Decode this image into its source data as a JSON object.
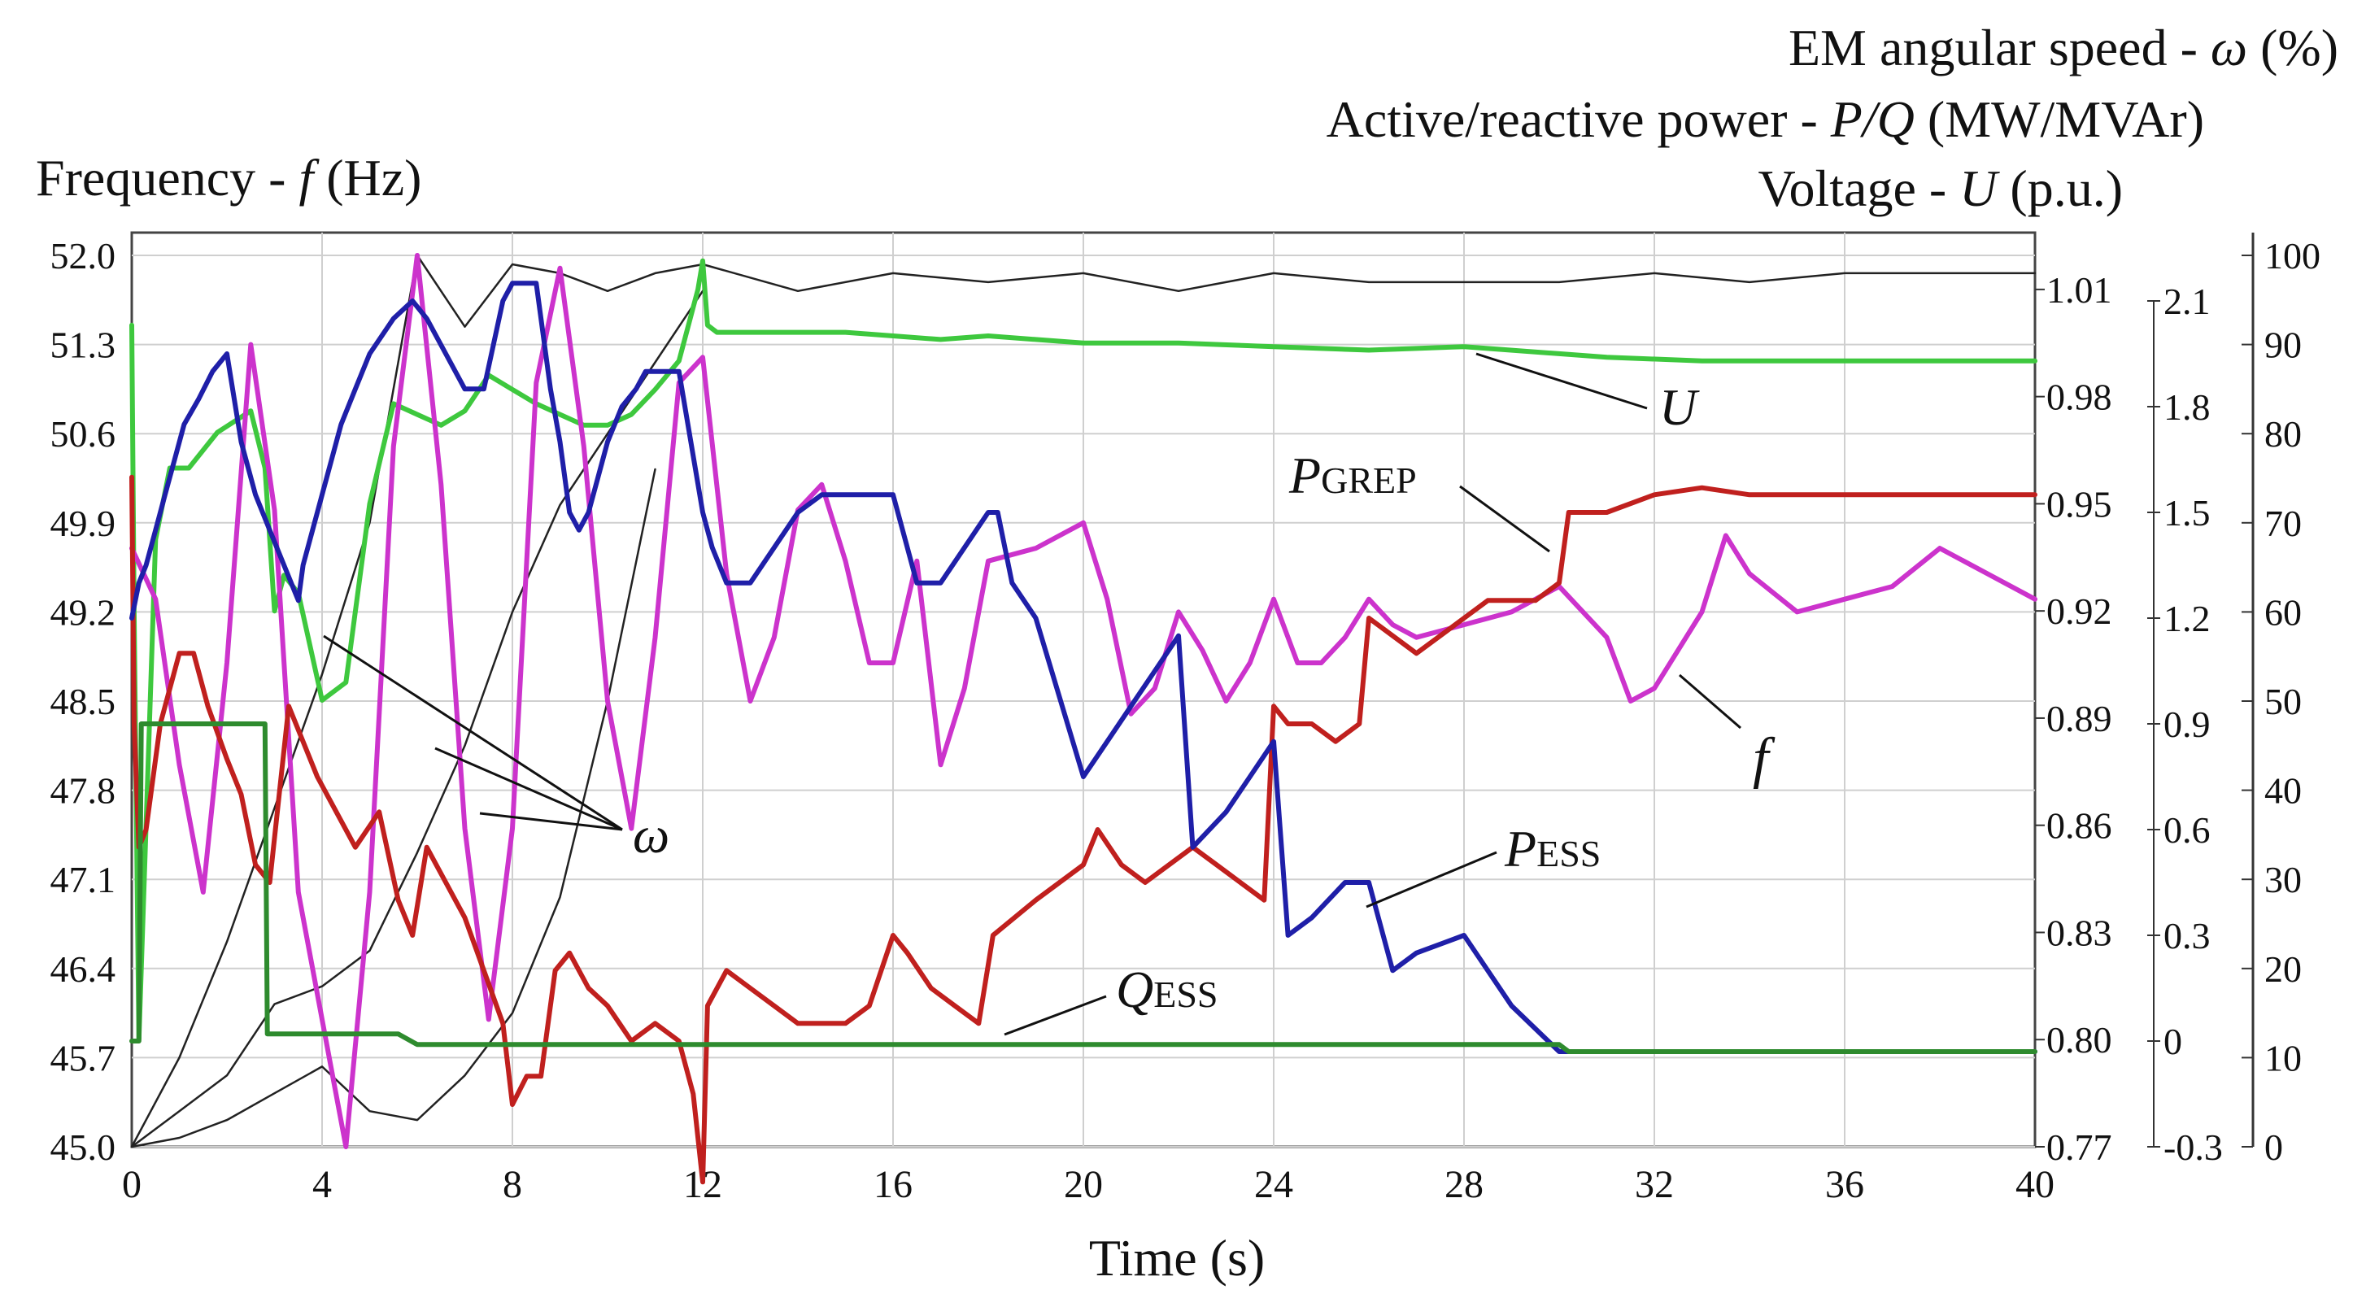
{
  "chart_data": {
    "type": "line",
    "title_lines": [
      {
        "key": "omega",
        "label": "EM angular speed - ",
        "symbol": "ω",
        "unit": " (%)"
      },
      {
        "key": "pq",
        "label": "Active/reactive power - ",
        "symbol": "P/Q",
        "unit": " (MW/MVAr)"
      },
      {
        "key": "u",
        "label": "Voltage - ",
        "symbol": "U",
        "unit": " (p.u.)"
      }
    ],
    "left_axis_title": {
      "label": "Frequency - ",
      "symbol": "f",
      "unit": " (Hz)"
    },
    "xlabel": "Time (s)",
    "xlim": [
      0,
      40
    ],
    "x_ticks": [
      "0",
      "4",
      "8",
      "12",
      "16",
      "20",
      "24",
      "28",
      "32",
      "36",
      "40"
    ],
    "axes": {
      "frequency": {
        "range": [
          45.0,
          52.0
        ],
        "ticks": [
          "45.0",
          "45.7",
          "46.4",
          "47.1",
          "47.8",
          "48.5",
          "49.2",
          "49.9",
          "50.6",
          "51.3",
          "52.0"
        ]
      },
      "voltage": {
        "range": [
          0.77,
          1.025
        ],
        "ticks": [
          "0.77",
          "0.80",
          "0.83",
          "0.86",
          "0.89",
          "0.92",
          "0.95",
          "0.98",
          "1.01"
        ]
      },
      "power": {
        "range": [
          -0.3,
          2.1
        ],
        "ticks": [
          "-0.3",
          "0",
          "0.3",
          "0.6",
          "0.9",
          "1.2",
          "1.5",
          "1.8",
          "2.1"
        ]
      },
      "speed": {
        "range": [
          0,
          100
        ],
        "ticks": [
          "0",
          "10",
          "20",
          "30",
          "40",
          "50",
          "60",
          "70",
          "80",
          "90",
          "100"
        ]
      }
    },
    "series": [
      {
        "name": "U",
        "axis": "voltage",
        "color": "#3ec83e",
        "x": [
          0,
          0.05,
          0.15,
          0.3,
          0.5,
          0.8,
          1.2,
          1.8,
          2.5,
          2.8,
          3.0,
          3.2,
          3.5,
          4.0,
          4.5,
          5.0,
          5.5,
          6.0,
          6.5,
          7.0,
          7.5,
          8.0,
          8.5,
          9.0,
          9.5,
          10.0,
          10.5,
          11.0,
          11.5,
          11.9,
          12.0,
          12.1,
          12.3,
          13,
          14,
          15,
          16,
          17,
          18,
          20,
          22,
          24,
          26,
          28,
          30,
          31,
          33,
          36,
          38,
          40
        ],
        "values": [
          1.0,
          0.92,
          0.8,
          0.86,
          0.94,
          0.96,
          0.96,
          0.97,
          0.976,
          0.96,
          0.92,
          0.93,
          0.925,
          0.895,
          0.9,
          0.95,
          0.978,
          0.975,
          0.972,
          0.976,
          0.986,
          0.982,
          0.978,
          0.975,
          0.972,
          0.972,
          0.975,
          0.982,
          0.99,
          1.01,
          1.018,
          1.0,
          0.998,
          0.998,
          0.998,
          0.998,
          0.997,
          0.996,
          0.997,
          0.995,
          0.995,
          0.994,
          0.993,
          0.994,
          0.992,
          0.991,
          0.99,
          0.99,
          0.99,
          0.99
        ]
      },
      {
        "name": "f",
        "axis": "frequency",
        "color": "#cc33cc",
        "x": [
          0,
          0.5,
          1.0,
          1.5,
          2.0,
          2.5,
          3.0,
          3.5,
          4.0,
          4.5,
          5.0,
          5.5,
          6.0,
          6.5,
          7.0,
          7.5,
          8.0,
          8.5,
          9.0,
          9.5,
          10.0,
          10.5,
          11.0,
          11.5,
          12.0,
          12.5,
          13.0,
          13.5,
          14.0,
          14.5,
          15.0,
          15.5,
          16.0,
          16.5,
          17.0,
          17.5,
          18.0,
          19.0,
          20.0,
          20.5,
          21.0,
          21.5,
          22.0,
          22.5,
          23.0,
          23.5,
          24.0,
          24.5,
          25.0,
          25.5,
          26.0,
          26.5,
          27.0,
          28.0,
          29.0,
          30.0,
          31.0,
          31.5,
          32.0,
          33.0,
          33.5,
          34.0,
          35.0,
          36.0,
          37.0,
          38.0,
          39.0,
          40.0
        ],
        "values": [
          49.7,
          49.3,
          48.0,
          47.0,
          48.8,
          51.3,
          50.0,
          47.0,
          46.0,
          45.0,
          47.0,
          50.5,
          52.0,
          50.2,
          47.5,
          46.0,
          47.5,
          51.0,
          51.9,
          50.5,
          48.5,
          47.5,
          49.0,
          51.0,
          51.2,
          49.5,
          48.5,
          49.0,
          50.0,
          50.2,
          49.6,
          48.8,
          48.8,
          49.6,
          48.0,
          48.6,
          49.6,
          49.7,
          49.9,
          49.3,
          48.4,
          48.6,
          49.2,
          48.9,
          48.5,
          48.8,
          49.3,
          48.8,
          48.8,
          49.0,
          49.3,
          49.1,
          49.0,
          49.1,
          49.2,
          49.4,
          49.0,
          48.5,
          48.6,
          49.2,
          49.8,
          49.5,
          49.2,
          49.3,
          49.4,
          49.7,
          49.5,
          49.3
        ]
      },
      {
        "name": "P_ESS",
        "axis": "power",
        "color": "#1f1fa8",
        "x": [
          0,
          0.15,
          0.3,
          0.5,
          0.7,
          0.9,
          1.1,
          1.4,
          1.7,
          2.0,
          2.3,
          2.6,
          2.9,
          3.2,
          3.5,
          3.6,
          3.8,
          4.0,
          4.2,
          4.4,
          4.7,
          5.0,
          5.5,
          5.9,
          6.2,
          6.6,
          7.0,
          7.4,
          7.8,
          8.0,
          8.2,
          8.5,
          8.8,
          9.0,
          9.2,
          9.4,
          9.6,
          9.8,
          10.0,
          10.3,
          10.6,
          10.8,
          11.0,
          11.5,
          12.0,
          12.2,
          12.5,
          13.0,
          13.5,
          14.0,
          14.5,
          15.0,
          15.5,
          16.0,
          16.5,
          17.0,
          17.5,
          18.0,
          18.2,
          18.5,
          19.0,
          20.0,
          20.5,
          21.0,
          21.5,
          22.0,
          22.3,
          23.0,
          23.5,
          24.0,
          24.3,
          24.8,
          25.5,
          26.0,
          26.5,
          27.0,
          28.0,
          29.0,
          30.0,
          31,
          34,
          38,
          40
        ],
        "values": [
          1.2,
          1.3,
          1.35,
          1.45,
          1.55,
          1.65,
          1.75,
          1.82,
          1.9,
          1.95,
          1.7,
          1.55,
          1.45,
          1.35,
          1.25,
          1.35,
          1.45,
          1.55,
          1.65,
          1.75,
          1.85,
          1.95,
          2.05,
          2.1,
          2.05,
          1.95,
          1.85,
          1.85,
          2.1,
          2.15,
          2.15,
          2.15,
          1.85,
          1.7,
          1.5,
          1.45,
          1.5,
          1.6,
          1.7,
          1.8,
          1.85,
          1.9,
          1.9,
          1.9,
          1.5,
          1.4,
          1.3,
          1.3,
          1.4,
          1.5,
          1.55,
          1.55,
          1.55,
          1.55,
          1.3,
          1.3,
          1.4,
          1.5,
          1.5,
          1.3,
          1.2,
          0.75,
          0.85,
          0.95,
          1.05,
          1.15,
          0.55,
          0.65,
          0.75,
          0.85,
          0.3,
          0.35,
          0.45,
          0.45,
          0.2,
          0.25,
          0.3,
          0.1,
          -0.03,
          -0.03,
          -0.03,
          -0.03,
          -0.03
        ]
      },
      {
        "name": "P_GREP",
        "axis": "power",
        "color": "#c0201e",
        "x": [
          0,
          0.05,
          0.15,
          0.3,
          0.6,
          1.0,
          1.3,
          1.6,
          2.0,
          2.3,
          2.6,
          2.9,
          3.3,
          3.6,
          3.9,
          4.3,
          4.7,
          5.2,
          5.6,
          5.9,
          6.2,
          6.6,
          7.0,
          7.4,
          7.8,
          8.0,
          8.3,
          8.6,
          8.9,
          9.2,
          9.6,
          10.0,
          10.5,
          11.0,
          11.5,
          11.8,
          12.0,
          12.1,
          12.5,
          13.0,
          13.5,
          14.0,
          14.5,
          15.0,
          15.5,
          16.0,
          16.3,
          16.8,
          17.3,
          17.8,
          18.1,
          19.0,
          20.0,
          20.3,
          20.8,
          21.3,
          21.8,
          22.3,
          22.8,
          23.3,
          23.8,
          24.0,
          24.3,
          24.8,
          25.3,
          25.8,
          26.0,
          26.5,
          27.0,
          27.5,
          28.0,
          28.5,
          29.0,
          29.5,
          30.0,
          30.2,
          31.0,
          32.0,
          33.0,
          34.0,
          36.0,
          38.0,
          40.0
        ],
        "values": [
          1.6,
          0.9,
          0.55,
          0.6,
          0.9,
          1.1,
          1.1,
          0.95,
          0.8,
          0.7,
          0.5,
          0.45,
          0.95,
          0.85,
          0.75,
          0.65,
          0.55,
          0.65,
          0.4,
          0.3,
          0.55,
          0.45,
          0.35,
          0.2,
          0.05,
          -0.18,
          -0.1,
          -0.1,
          0.2,
          0.25,
          0.15,
          0.1,
          0.0,
          0.05,
          0.0,
          -0.15,
          -0.4,
          0.1,
          0.2,
          0.15,
          0.1,
          0.05,
          0.05,
          0.05,
          0.1,
          0.3,
          0.25,
          0.15,
          0.1,
          0.05,
          0.3,
          0.4,
          0.5,
          0.6,
          0.5,
          0.45,
          0.5,
          0.55,
          0.5,
          0.45,
          0.4,
          0.95,
          0.9,
          0.9,
          0.85,
          0.9,
          1.2,
          1.15,
          1.1,
          1.15,
          1.2,
          1.25,
          1.25,
          1.25,
          1.3,
          1.5,
          1.5,
          1.55,
          1.57,
          1.55,
          1.55,
          1.55,
          1.55
        ]
      },
      {
        "name": "Q_ESS",
        "axis": "power",
        "color": "#2e8b2e",
        "x": [
          0,
          0.15,
          0.2,
          1.0,
          2.8,
          2.85,
          3.0,
          4.0,
          5.6,
          6.0,
          8.0,
          12.0,
          16.0,
          20.0,
          24.0,
          28.0,
          30.0,
          30.2,
          34.0,
          40.0
        ],
        "values": [
          0.0,
          0.0,
          0.9,
          0.9,
          0.9,
          0.02,
          0.02,
          0.02,
          0.02,
          -0.01,
          -0.01,
          -0.01,
          -0.01,
          -0.01,
          -0.01,
          -0.01,
          -0.01,
          -0.03,
          -0.03,
          -0.03
        ]
      },
      {
        "name": "ω1",
        "axis": "speed",
        "color": "#222222",
        "x": [
          0,
          1,
          2,
          3,
          4,
          5,
          6,
          7,
          8,
          9,
          10,
          11,
          12,
          14,
          16,
          18,
          20,
          22,
          24,
          26,
          28,
          30,
          32,
          34,
          36,
          38,
          40
        ],
        "values": [
          0,
          10,
          23,
          38,
          53,
          70,
          100,
          92,
          99,
          98,
          96,
          98,
          99,
          96,
          98,
          97,
          98,
          96,
          98,
          97,
          97,
          97,
          98,
          97,
          98,
          98,
          98
        ]
      },
      {
        "name": "ω2",
        "axis": "speed",
        "color": "#222222",
        "x": [
          0,
          1,
          2,
          3,
          4,
          5,
          6,
          7,
          8,
          9,
          10,
          11,
          12
        ],
        "values": [
          0,
          4,
          8,
          16,
          18,
          22,
          33,
          45,
          60,
          72,
          80,
          88,
          96
        ]
      },
      {
        "name": "ω3",
        "axis": "speed",
        "color": "#222222",
        "x": [
          0,
          1,
          2,
          3,
          4,
          5,
          6,
          7,
          8,
          9,
          10,
          11
        ],
        "values": [
          0,
          1,
          3,
          6,
          9,
          4,
          3,
          8,
          15,
          28,
          50,
          76
        ]
      }
    ],
    "annotations": {
      "U": "U",
      "P_GREP": {
        "main": "P",
        "sub": "GREP"
      },
      "f": "f",
      "omega": "ω",
      "P_ESS": {
        "main": "P",
        "sub": "ESS"
      },
      "Q_ESS": {
        "main": "Q",
        "sub": "ESS"
      }
    }
  }
}
